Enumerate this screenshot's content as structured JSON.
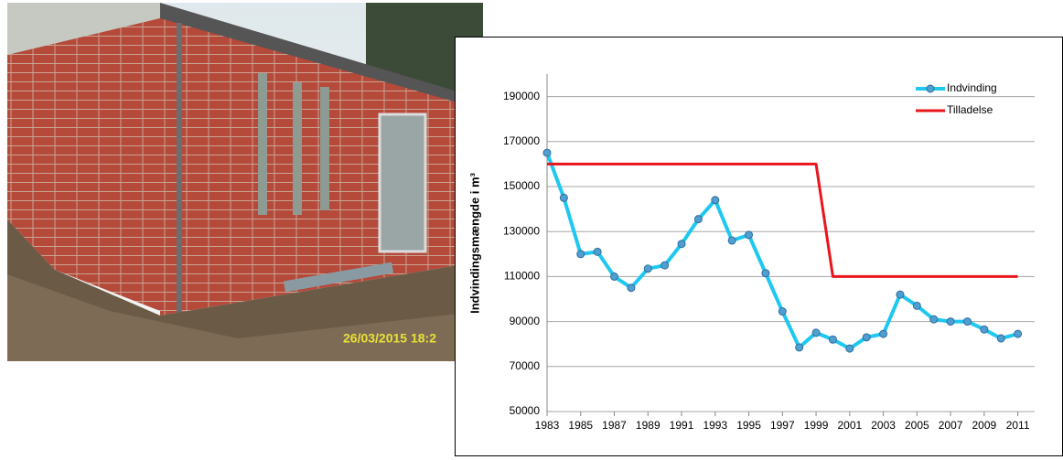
{
  "photo": {
    "timestamp": "26/03/2015 18:2"
  },
  "chart_data": {
    "type": "line",
    "y_label": "Indvindingsmængde i m³",
    "x": [
      1983,
      1984,
      1985,
      1986,
      1987,
      1988,
      1989,
      1990,
      1991,
      1992,
      1993,
      1994,
      1995,
      1996,
      1997,
      1998,
      1999,
      2000,
      2001,
      2002,
      2003,
      2004,
      2005,
      2006,
      2007,
      2008,
      2009,
      2010,
      2011
    ],
    "xlim": [
      1983,
      2012
    ],
    "xticks": [
      1983,
      1985,
      1987,
      1989,
      1991,
      1993,
      1995,
      1997,
      1999,
      2001,
      2003,
      2005,
      2007,
      2009,
      2011
    ],
    "ylim": [
      50000,
      200000
    ],
    "yticks": [
      50000,
      70000,
      90000,
      110000,
      130000,
      150000,
      170000,
      190000
    ],
    "grid": true,
    "legend": "top right",
    "series": [
      {
        "name": "Indvinding",
        "color": "#1ec8f0",
        "marker": "circle",
        "values": [
          165000,
          145000,
          120000,
          121000,
          110000,
          105000,
          113500,
          115000,
          124500,
          135500,
          144000,
          126000,
          128500,
          111500,
          94500,
          78500,
          85000,
          82000,
          78000,
          83000,
          84500,
          102000,
          97000,
          91000,
          90000,
          90000,
          86500,
          82500,
          84500
        ]
      },
      {
        "name": "Tilladelse",
        "color": "#e8161b",
        "values": [
          160000,
          160000,
          160000,
          160000,
          160000,
          160000,
          160000,
          160000,
          160000,
          160000,
          160000,
          160000,
          160000,
          160000,
          160000,
          160000,
          160000,
          110000,
          110000,
          110000,
          110000,
          110000,
          110000,
          110000,
          110000,
          110000,
          110000,
          110000,
          110000
        ]
      }
    ]
  }
}
